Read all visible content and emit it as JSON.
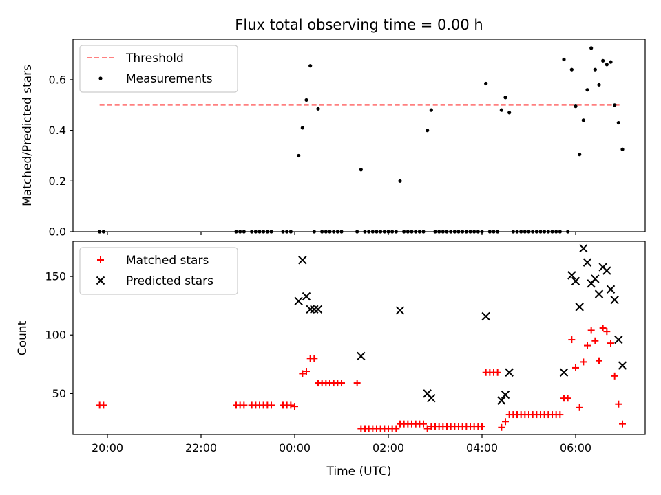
{
  "chart_data": {
    "title": "Flux total observing time = 0.00 h",
    "xlabel": "Time (UTC)",
    "x_ticks": [
      "20:00",
      "22:00",
      "00:00",
      "02:00",
      "04:00",
      "06:00"
    ],
    "panels": [
      {
        "type": "scatter",
        "ylabel": "Matched/Predicted stars",
        "ylim": [
          0,
          0.76
        ],
        "y_ticks": [
          "0.0",
          "0.2",
          "0.4",
          "0.6"
        ],
        "legend_position": "upper-left",
        "threshold": {
          "name": "Threshold",
          "value": 0.5,
          "x_range": [
            "19:50",
            "07:00"
          ],
          "color": "#ff8080",
          "style": "dashed"
        },
        "series": [
          {
            "name": "Measurements",
            "marker": "dot",
            "color": "#000000",
            "points": [
              [
                "19:50",
                0
              ],
              [
                "19:55",
                0
              ],
              [
                "22:45",
                0
              ],
              [
                "22:50",
                0
              ],
              [
                "22:55",
                0
              ],
              [
                "23:05",
                0
              ],
              [
                "23:10",
                0
              ],
              [
                "23:15",
                0
              ],
              [
                "23:20",
                0
              ],
              [
                "23:25",
                0
              ],
              [
                "23:30",
                0
              ],
              [
                "23:45",
                0
              ],
              [
                "23:50",
                0
              ],
              [
                "23:55",
                0
              ],
              [
                "00:05",
                0.3
              ],
              [
                "00:10",
                0.41
              ],
              [
                "00:15",
                0.52
              ],
              [
                "00:20",
                0.655
              ],
              [
                "00:25",
                0
              ],
              [
                "00:30",
                0.485
              ],
              [
                "00:35",
                0
              ],
              [
                "00:40",
                0
              ],
              [
                "00:45",
                0
              ],
              [
                "00:50",
                0
              ],
              [
                "00:55",
                0
              ],
              [
                "01:00",
                0
              ],
              [
                "01:20",
                0
              ],
              [
                "01:25",
                0.245
              ],
              [
                "01:30",
                0
              ],
              [
                "01:35",
                0
              ],
              [
                "01:40",
                0
              ],
              [
                "01:45",
                0
              ],
              [
                "01:50",
                0
              ],
              [
                "01:55",
                0
              ],
              [
                "02:00",
                0
              ],
              [
                "02:05",
                0
              ],
              [
                "02:10",
                0
              ],
              [
                "02:15",
                0.2
              ],
              [
                "02:20",
                0
              ],
              [
                "02:25",
                0
              ],
              [
                "02:30",
                0
              ],
              [
                "02:35",
                0
              ],
              [
                "02:40",
                0
              ],
              [
                "02:45",
                0
              ],
              [
                "02:50",
                0.4
              ],
              [
                "02:55",
                0.48
              ],
              [
                "03:00",
                0
              ],
              [
                "03:05",
                0
              ],
              [
                "03:10",
                0
              ],
              [
                "03:15",
                0
              ],
              [
                "03:20",
                0
              ],
              [
                "03:25",
                0
              ],
              [
                "03:30",
                0
              ],
              [
                "03:35",
                0
              ],
              [
                "03:40",
                0
              ],
              [
                "03:45",
                0
              ],
              [
                "03:50",
                0
              ],
              [
                "03:55",
                0
              ],
              [
                "04:00",
                0
              ],
              [
                "04:05",
                0.585
              ],
              [
                "04:10",
                0
              ],
              [
                "04:15",
                0
              ],
              [
                "04:20",
                0
              ],
              [
                "04:25",
                0.48
              ],
              [
                "04:30",
                0.53
              ],
              [
                "04:35",
                0.47
              ],
              [
                "04:40",
                0
              ],
              [
                "04:45",
                0
              ],
              [
                "04:50",
                0
              ],
              [
                "04:55",
                0
              ],
              [
                "05:00",
                0
              ],
              [
                "05:05",
                0
              ],
              [
                "05:10",
                0
              ],
              [
                "05:15",
                0
              ],
              [
                "05:20",
                0
              ],
              [
                "05:25",
                0
              ],
              [
                "05:30",
                0
              ],
              [
                "05:35",
                0
              ],
              [
                "05:40",
                0
              ],
              [
                "05:45",
                0.68
              ],
              [
                "05:50",
                0
              ],
              [
                "05:55",
                0.64
              ],
              [
                "06:00",
                0.495
              ],
              [
                "06:05",
                0.305
              ],
              [
                "06:10",
                0.44
              ],
              [
                "06:15",
                0.56
              ],
              [
                "06:20",
                0.725
              ],
              [
                "06:25",
                0.64
              ],
              [
                "06:30",
                0.58
              ],
              [
                "06:35",
                0.675
              ],
              [
                "06:40",
                0.66
              ],
              [
                "06:45",
                0.67
              ],
              [
                "06:50",
                0.5
              ],
              [
                "06:55",
                0.43
              ],
              [
                "07:00",
                0.325
              ]
            ]
          }
        ]
      },
      {
        "type": "scatter",
        "ylabel": "Count",
        "ylim": [
          15,
          180
        ],
        "y_ticks": [
          "50",
          "100",
          "150"
        ],
        "legend_position": "upper-left",
        "series": [
          {
            "name": "Matched stars",
            "marker": "plus",
            "color": "#ff0000",
            "points": [
              [
                "19:50",
                40
              ],
              [
                "19:55",
                40
              ],
              [
                "22:45",
                40
              ],
              [
                "22:50",
                40
              ],
              [
                "22:55",
                40
              ],
              [
                "23:05",
                40
              ],
              [
                "23:10",
                40
              ],
              [
                "23:15",
                40
              ],
              [
                "23:20",
                40
              ],
              [
                "23:25",
                40
              ],
              [
                "23:30",
                40
              ],
              [
                "23:45",
                40
              ],
              [
                "23:50",
                40
              ],
              [
                "23:55",
                40
              ],
              [
                "00:00",
                39
              ],
              [
                "00:10",
                67
              ],
              [
                "00:15",
                69
              ],
              [
                "00:20",
                80
              ],
              [
                "00:25",
                80
              ],
              [
                "00:30",
                59
              ],
              [
                "00:35",
                59
              ],
              [
                "00:40",
                59
              ],
              [
                "00:45",
                59
              ],
              [
                "00:50",
                59
              ],
              [
                "00:55",
                59
              ],
              [
                "01:00",
                59
              ],
              [
                "01:20",
                59
              ],
              [
                "01:25",
                20
              ],
              [
                "01:30",
                20
              ],
              [
                "01:35",
                20
              ],
              [
                "01:40",
                20
              ],
              [
                "01:45",
                20
              ],
              [
                "01:50",
                20
              ],
              [
                "01:55",
                20
              ],
              [
                "02:00",
                20
              ],
              [
                "02:05",
                20
              ],
              [
                "02:10",
                20
              ],
              [
                "02:15",
                24
              ],
              [
                "02:20",
                24
              ],
              [
                "02:25",
                24
              ],
              [
                "02:30",
                24
              ],
              [
                "02:35",
                24
              ],
              [
                "02:40",
                24
              ],
              [
                "02:45",
                24
              ],
              [
                "02:50",
                20
              ],
              [
                "02:55",
                22
              ],
              [
                "03:00",
                22
              ],
              [
                "03:05",
                22
              ],
              [
                "03:10",
                22
              ],
              [
                "03:15",
                22
              ],
              [
                "03:20",
                22
              ],
              [
                "03:25",
                22
              ],
              [
                "03:30",
                22
              ],
              [
                "03:35",
                22
              ],
              [
                "03:40",
                22
              ],
              [
                "03:45",
                22
              ],
              [
                "03:50",
                22
              ],
              [
                "03:55",
                22
              ],
              [
                "04:00",
                22
              ],
              [
                "04:05",
                68
              ],
              [
                "04:10",
                68
              ],
              [
                "04:15",
                68
              ],
              [
                "04:20",
                68
              ],
              [
                "04:25",
                21
              ],
              [
                "04:30",
                26
              ],
              [
                "04:35",
                32
              ],
              [
                "04:40",
                32
              ],
              [
                "04:45",
                32
              ],
              [
                "04:50",
                32
              ],
              [
                "04:55",
                32
              ],
              [
                "05:00",
                32
              ],
              [
                "05:05",
                32
              ],
              [
                "05:10",
                32
              ],
              [
                "05:15",
                32
              ],
              [
                "05:20",
                32
              ],
              [
                "05:25",
                32
              ],
              [
                "05:30",
                32
              ],
              [
                "05:35",
                32
              ],
              [
                "05:40",
                32
              ],
              [
                "05:45",
                46
              ],
              [
                "05:50",
                46
              ],
              [
                "05:55",
                96
              ],
              [
                "06:00",
                72
              ],
              [
                "06:05",
                38
              ],
              [
                "06:10",
                77
              ],
              [
                "06:15",
                91
              ],
              [
                "06:20",
                104
              ],
              [
                "06:25",
                95
              ],
              [
                "06:30",
                78
              ],
              [
                "06:35",
                106
              ],
              [
                "06:40",
                103
              ],
              [
                "06:45",
                93
              ],
              [
                "06:50",
                65
              ],
              [
                "06:55",
                41
              ],
              [
                "07:00",
                24
              ]
            ]
          },
          {
            "name": "Predicted stars",
            "marker": "x",
            "color": "#000000",
            "points": [
              [
                "00:05",
                129
              ],
              [
                "00:10",
                164
              ],
              [
                "00:15",
                133
              ],
              [
                "00:20",
                122
              ],
              [
                "00:25",
                122
              ],
              [
                "00:30",
                122
              ],
              [
                "01:25",
                82
              ],
              [
                "02:15",
                121
              ],
              [
                "02:50",
                50
              ],
              [
                "02:55",
                46
              ],
              [
                "04:05",
                116
              ],
              [
                "04:25",
                44
              ],
              [
                "04:30",
                49
              ],
              [
                "04:35",
                68
              ],
              [
                "05:45",
                68
              ],
              [
                "05:55",
                151
              ],
              [
                "06:00",
                146
              ],
              [
                "06:05",
                124
              ],
              [
                "06:10",
                174
              ],
              [
                "06:15",
                162
              ],
              [
                "06:20",
                144
              ],
              [
                "06:25",
                148
              ],
              [
                "06:30",
                135
              ],
              [
                "06:35",
                158
              ],
              [
                "06:40",
                155
              ],
              [
                "06:45",
                139
              ],
              [
                "06:50",
                130
              ],
              [
                "06:55",
                96
              ],
              [
                "07:00",
                74
              ]
            ]
          }
        ]
      }
    ]
  }
}
